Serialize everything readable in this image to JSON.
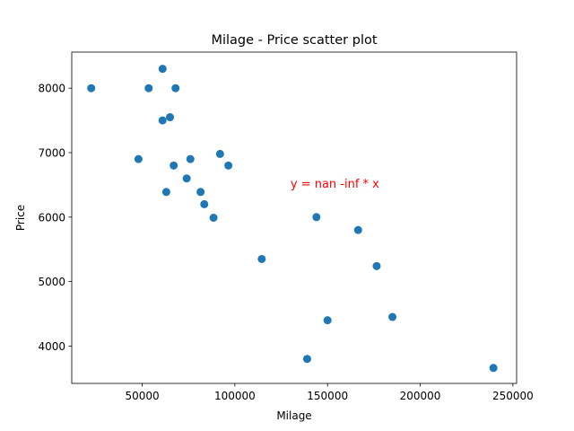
{
  "chart_data": {
    "type": "scatter",
    "title": "Milage - Price scatter plot",
    "xlabel": "Milage",
    "ylabel": "Price",
    "xlim": [
      12000,
      252000
    ],
    "ylim": [
      3420,
      8560
    ],
    "xticks": [
      50000,
      100000,
      150000,
      200000,
      250000
    ],
    "xtick_labels": [
      "50000",
      "100000",
      "150000",
      "200000",
      "250000"
    ],
    "yticks": [
      4000,
      5000,
      6000,
      7000,
      8000
    ],
    "ytick_labels": [
      "4000",
      "5000",
      "6000",
      "7000",
      "8000"
    ],
    "grid": false,
    "legend": "none",
    "point_color": "#1f77b4",
    "series": [
      {
        "x": [
          22500,
          53500,
          61000,
          68000,
          61000,
          65000,
          48000,
          67000,
          76000,
          92000,
          96500,
          63000,
          74000,
          81500,
          83500,
          88500,
          144000,
          166500,
          114500,
          176500,
          150000,
          185000,
          139000,
          239500
        ],
        "y": [
          8000,
          8000,
          8300,
          8000,
          7500,
          7550,
          6900,
          6800,
          6900,
          6980,
          6800,
          6390,
          6600,
          6390,
          6200,
          5990,
          6000,
          5800,
          5350,
          5240,
          4400,
          4450,
          3800,
          3660
        ]
      }
    ],
    "annotations": [
      {
        "text": "y = nan -inf * x",
        "x": 130000,
        "y": 6520,
        "color": "#ff0000"
      }
    ]
  }
}
